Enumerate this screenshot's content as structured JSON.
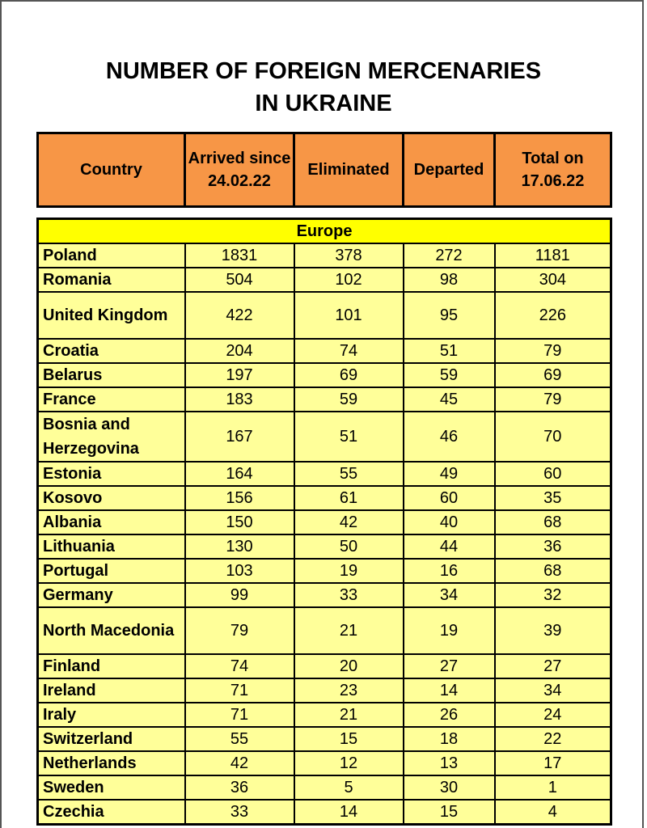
{
  "title_line1": "NUMBER OF FOREIGN MERCENARIES",
  "title_line2": "IN UKRAINE",
  "headers": {
    "country": "Country",
    "arrived": "Arrived since 24.02.22",
    "eliminated": "Eliminated",
    "departed": "Departed",
    "total": "Total on 17.06.22"
  },
  "region": "Europe",
  "rows": [
    {
      "country": "Poland",
      "arrived": "1831",
      "eliminated": "378",
      "departed": "272",
      "total": "1181"
    },
    {
      "country": "Romania",
      "arrived": "504",
      "eliminated": "102",
      "departed": "98",
      "total": "304"
    },
    {
      "country": "United Kingdom",
      "arrived": "422",
      "eliminated": "101",
      "departed": "95",
      "total": "226"
    },
    {
      "country": "Croatia",
      "arrived": "204",
      "eliminated": "74",
      "departed": "51",
      "total": "79"
    },
    {
      "country": "Belarus",
      "arrived": "197",
      "eliminated": "69",
      "departed": "59",
      "total": "69"
    },
    {
      "country": "France",
      "arrived": "183",
      "eliminated": "59",
      "departed": "45",
      "total": "79"
    },
    {
      "country": "Bosnia and Herzegovina",
      "arrived": "167",
      "eliminated": "51",
      "departed": "46",
      "total": "70"
    },
    {
      "country": "Estonia",
      "arrived": "164",
      "eliminated": "55",
      "departed": "49",
      "total": "60"
    },
    {
      "country": "Kosovo",
      "arrived": "156",
      "eliminated": "61",
      "departed": "60",
      "total": "35"
    },
    {
      "country": "Albania",
      "arrived": "150",
      "eliminated": "42",
      "departed": "40",
      "total": "68"
    },
    {
      "country": "Lithuania",
      "arrived": "130",
      "eliminated": "50",
      "departed": "44",
      "total": "36"
    },
    {
      "country": "Portugal",
      "arrived": "103",
      "eliminated": "19",
      "departed": "16",
      "total": "68"
    },
    {
      "country": "Germany",
      "arrived": "99",
      "eliminated": "33",
      "departed": "34",
      "total": "32"
    },
    {
      "country": "North Macedonia",
      "arrived": "79",
      "eliminated": "21",
      "departed": "19",
      "total": "39"
    },
    {
      "country": "Finland",
      "arrived": "74",
      "eliminated": "20",
      "departed": "27",
      "total": "27"
    },
    {
      "country": "Ireland",
      "arrived": "71",
      "eliminated": "23",
      "departed": "14",
      "total": "34"
    },
    {
      "country": "Iraly",
      "arrived": "71",
      "eliminated": "21",
      "departed": "26",
      "total": "24"
    },
    {
      "country": "Switzerland",
      "arrived": "55",
      "eliminated": "15",
      "departed": "18",
      "total": "22"
    },
    {
      "country": "Netherlands",
      "arrived": "42",
      "eliminated": "12",
      "departed": "13",
      "total": "17"
    },
    {
      "country": "Sweden",
      "arrived": "36",
      "eliminated": "5",
      "departed": "30",
      "total": "1"
    },
    {
      "country": "Czechia",
      "arrived": "33",
      "eliminated": "14",
      "departed": "15",
      "total": "4"
    }
  ]
}
